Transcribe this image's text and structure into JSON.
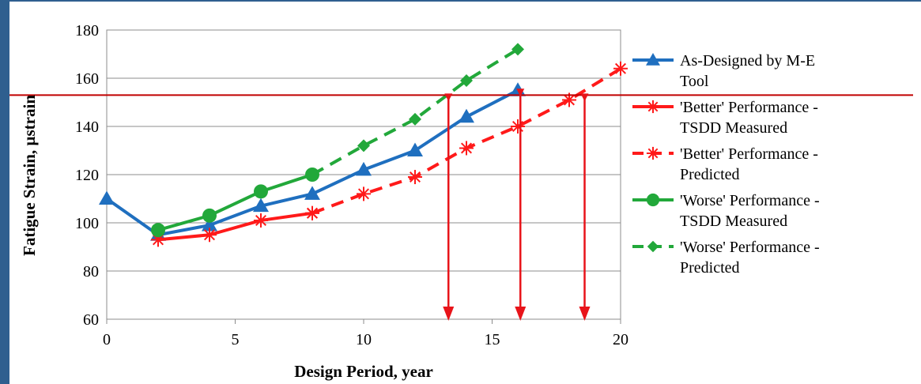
{
  "chart_data": {
    "type": "line",
    "xlabel": "Design Period, year",
    "ylabel": "Fatigue Strain, µstrain",
    "xlim": [
      0,
      20
    ],
    "ylim": [
      60,
      180
    ],
    "xticks": [
      "0",
      "5",
      "10",
      "15",
      "20"
    ],
    "yticks": [
      "60",
      "80",
      "100",
      "120",
      "140",
      "160",
      "180"
    ],
    "grid": "horizontal",
    "legend_position": "right",
    "series": [
      {
        "name": "As-Designed by M-E Tool",
        "legend_lines": [
          "As-Designed by M-E",
          "Tool"
        ],
        "color": "#1f6fbf",
        "line": "solid",
        "marker": "triangle",
        "x": [
          0,
          2,
          4,
          6,
          8,
          10,
          12,
          14,
          16
        ],
        "y": [
          110,
          95,
          99,
          107,
          112,
          122,
          130,
          144,
          155
        ]
      },
      {
        "name": "'Better' Performance - TSDD Measured",
        "legend_lines": [
          "'Better' Performance -",
          "TSDD Measured"
        ],
        "color": "#ff1a1a",
        "line": "solid",
        "marker": "star",
        "x": [
          2,
          4,
          6,
          8
        ],
        "y": [
          93,
          95,
          101,
          104
        ]
      },
      {
        "name": "'Better' Performance - Predicted",
        "legend_lines": [
          "'Better' Performance -",
          "Predicted"
        ],
        "color": "#ff1a1a",
        "line": "dashed",
        "marker": "star",
        "x": [
          8,
          10,
          12,
          14,
          16,
          18,
          20
        ],
        "y": [
          104,
          112,
          119,
          131,
          140,
          151,
          164
        ]
      },
      {
        "name": "'Worse' Performance - TSDD Measured",
        "legend_lines": [
          "'Worse' Performance -",
          "TSDD Measured"
        ],
        "color": "#22a83a",
        "line": "solid",
        "marker": "circle",
        "x": [
          2,
          4,
          6,
          8
        ],
        "y": [
          97,
          103,
          113,
          120
        ]
      },
      {
        "name": "'Worse' Performance - Predicted",
        "legend_lines": [
          "'Worse' Performance -",
          "Predicted"
        ],
        "color": "#22a83a",
        "line": "dashed",
        "marker": "diamond",
        "x": [
          8,
          10,
          12,
          14,
          16
        ],
        "y": [
          120,
          132,
          143,
          159,
          172
        ]
      }
    ],
    "threshold": {
      "y": 153,
      "color": "#c00000"
    },
    "arrows": [
      {
        "x": 13.3,
        "y_top": 153,
        "y_bottom": 60,
        "color": "#e8141a"
      },
      {
        "x": 16.1,
        "y_top": 155,
        "y_bottom": 60,
        "color": "#e8141a"
      },
      {
        "x": 18.6,
        "y_top": 153,
        "y_bottom": 60,
        "color": "#e8141a"
      }
    ]
  }
}
